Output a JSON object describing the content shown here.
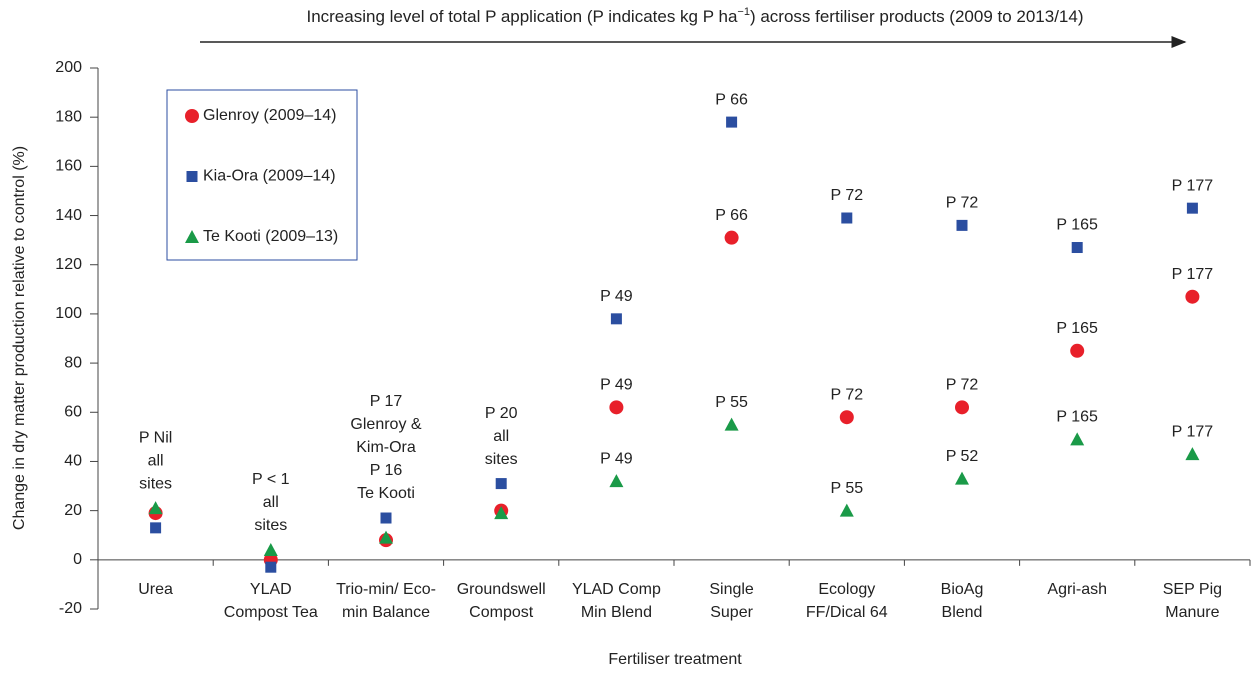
{
  "chart_data": {
    "type": "scatter",
    "title": [
      "Increasing level of total P application (P indicates kg P ha",
      "−1",
      ") across fertiliser products (2009 to 2013/14)"
    ],
    "x_label": "Fertiliser treatment",
    "y_label": "Change in dry matter production relative to control (%)",
    "categories": [
      [
        "Urea"
      ],
      [
        "YLAD",
        "Compost Tea"
      ],
      [
        "Trio-min/ Eco-",
        "min Balance"
      ],
      [
        "Groundswell",
        "Compost"
      ],
      [
        "YLAD Comp",
        "Min Blend"
      ],
      [
        "Single",
        "Super"
      ],
      [
        "Ecology",
        "FF/Dical 64"
      ],
      [
        "BioAg",
        "Blend"
      ],
      [
        "Agri-ash"
      ],
      [
        "SEP Pig",
        "Manure"
      ]
    ],
    "category_notes": [
      [
        "P Nil",
        "all",
        "sites"
      ],
      [
        "P < 1",
        "all",
        "sites"
      ],
      [
        "P 17",
        "Glenroy &",
        "Kim-Ora",
        "P 16",
        "Te Kooti"
      ],
      [
        "P 20",
        "all",
        "sites"
      ],
      null,
      null,
      null,
      null,
      null,
      null
    ],
    "series": [
      {
        "name": "Glenroy (2009–14)",
        "color": "#e8202a",
        "marker": "circle",
        "values": [
          19,
          0,
          8,
          20,
          62,
          131,
          58,
          62,
          85,
          107
        ],
        "labels": [
          null,
          null,
          null,
          null,
          "P 49",
          "P 66",
          "P 72",
          "P 72",
          "P 165",
          "P 177"
        ]
      },
      {
        "name": "Kia-Ora (2009–14)",
        "color": "#2b4ea0",
        "marker": "square",
        "values": [
          13,
          -3,
          17,
          31,
          98,
          178,
          139,
          136,
          127,
          143
        ],
        "labels": [
          null,
          null,
          null,
          null,
          "P 49",
          "P 66",
          "P 72",
          "P 72",
          "P 165",
          "P 177"
        ]
      },
      {
        "name": "Te Kooti (2009–13)",
        "color": "#1a9a48",
        "marker": "triangle",
        "values": [
          21,
          4,
          9,
          19,
          32,
          55,
          20,
          33,
          49,
          43
        ],
        "labels": [
          null,
          null,
          null,
          null,
          "P 49",
          "P 55",
          "P 55",
          "P 52",
          "P 165",
          "P 177"
        ]
      }
    ],
    "ylim": [
      -20,
      200
    ],
    "yticks": [
      -20,
      0,
      20,
      40,
      60,
      80,
      100,
      120,
      140,
      160,
      180,
      200
    ]
  }
}
